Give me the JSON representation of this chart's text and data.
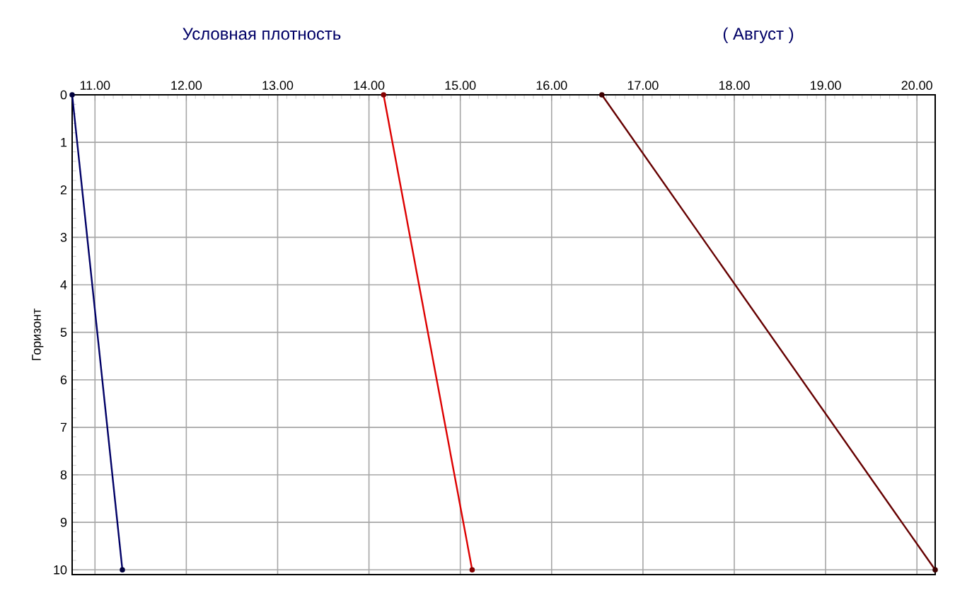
{
  "chart_data": {
    "type": "line",
    "title": "Условная плотность",
    "subtitle": "( Август )",
    "ylabel": "Горизонт",
    "series": [
      {
        "color": "#000066",
        "x": [
          10.75,
          11.3
        ],
        "values": [
          0,
          10
        ]
      },
      {
        "color": "#dd0000",
        "x": [
          14.16,
          15.13
        ],
        "values": [
          0,
          10
        ]
      },
      {
        "color": "#660000",
        "x": [
          16.55,
          20.2
        ],
        "values": [
          0,
          10
        ]
      }
    ],
    "xlim": [
      10.75,
      20.2
    ],
    "xticks": [
      {
        "value": 11,
        "label": "11.00"
      },
      {
        "value": 12,
        "label": "12.00"
      },
      {
        "value": 13,
        "label": "13.00"
      },
      {
        "value": 14,
        "label": "14.00"
      },
      {
        "value": 15,
        "label": "15.00"
      },
      {
        "value": 16,
        "label": "16.00"
      },
      {
        "value": 17,
        "label": "17.00"
      },
      {
        "value": 18,
        "label": "18.00"
      },
      {
        "value": 19,
        "label": "19.00"
      },
      {
        "value": 20,
        "label": "20.00"
      }
    ],
    "ylim": [
      10.1,
      0
    ],
    "yticks": [
      0,
      1,
      2,
      3,
      4,
      5,
      6,
      7,
      8,
      9,
      10
    ],
    "grid": true,
    "marker": "circle",
    "line_style": "solid"
  }
}
